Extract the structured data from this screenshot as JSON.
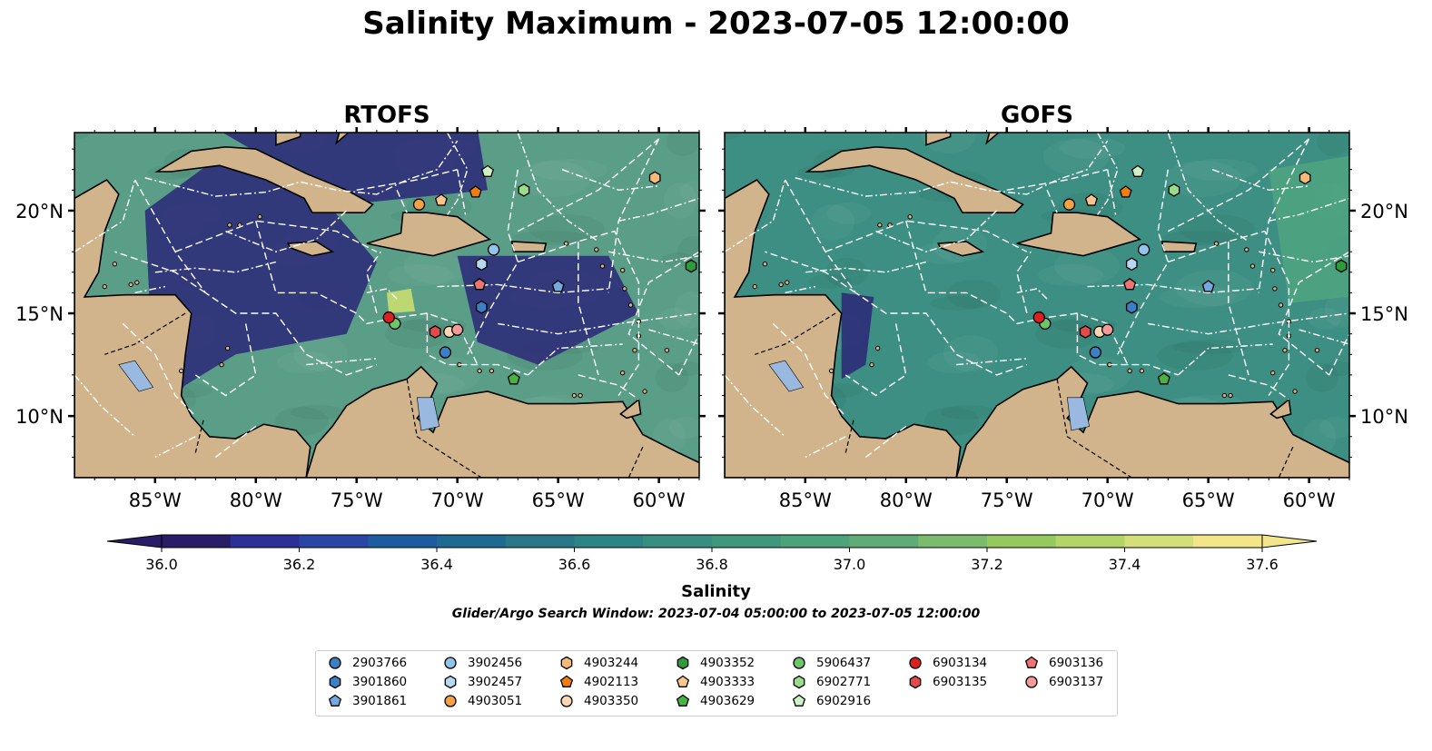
{
  "title": "Salinity Maximum - 2023-07-05 12:00:00",
  "panels": [
    {
      "title": "RTOFS",
      "fill": "#5a9e88",
      "overlays": [
        {
          "color": "#2b2778",
          "points": [
            [
              -85.5,
              20
            ],
            [
              -82,
              22.5
            ],
            [
              -77,
              21
            ],
            [
              -74,
              17.5
            ],
            [
              -75.5,
              14
            ],
            [
              -81,
              13
            ],
            [
              -83.5,
              11.5
            ],
            [
              -85,
              10
            ]
          ]
        },
        {
          "color": "#2b2778",
          "points": [
            [
              -70,
              17.8
            ],
            [
              -62.5,
              17.8
            ],
            [
              -61,
              15
            ],
            [
              -66,
              12.5
            ],
            [
              -69,
              13.6
            ]
          ]
        },
        {
          "color": "#2b2778",
          "points": [
            [
              -82,
              24
            ],
            [
              -69,
              24
            ],
            [
              -68.5,
              21
            ],
            [
              -75.5,
              20.3
            ]
          ]
        },
        {
          "color": "#cfe070",
          "points": [
            [
              -73.5,
              16
            ],
            [
              -72.3,
              16.2
            ],
            [
              -72.1,
              15.1
            ],
            [
              -73.4,
              15
            ]
          ]
        },
        {
          "color": "#2b2778",
          "points": [
            [
              -90,
              13
            ],
            [
              -86,
              11
            ],
            [
              -83,
              8
            ],
            [
              -81,
              7
            ],
            [
              -90,
              7
            ]
          ]
        }
      ]
    },
    {
      "title": "GOFS",
      "fill": "#3d8f83",
      "overlays": [
        {
          "color": "#2b2778",
          "points": [
            [
              -90,
              13
            ],
            [
              -86,
              11
            ],
            [
              -83,
              8
            ],
            [
              -81,
              7
            ],
            [
              -90,
              7
            ]
          ]
        },
        {
          "color": "#2b2778",
          "points": [
            [
              -83.2,
              16
            ],
            [
              -81.6,
              15.8
            ],
            [
              -82,
              12.5
            ],
            [
              -83.2,
              11.8
            ]
          ]
        },
        {
          "color": "#4ea480",
          "points": [
            [
              -62,
              22
            ],
            [
              -56,
              23
            ],
            [
              -56,
              16
            ],
            [
              -61,
              15.5
            ]
          ]
        }
      ]
    }
  ],
  "map": {
    "lon_range": [
      -89,
      -58
    ],
    "lat_range": [
      7,
      23.8
    ],
    "x_ticks": [
      "85°W",
      "80°W",
      "75°W",
      "70°W",
      "65°W",
      "60°W"
    ],
    "y_ticks": [
      "20°N",
      "15°N",
      "10°N"
    ],
    "land_color": "#d2b48c",
    "lake_color": "#9ab9e0"
  },
  "colorbar": {
    "label": "Salinity",
    "ticks": [
      "36.0",
      "36.2",
      "36.4",
      "36.6",
      "36.8",
      "37.0",
      "37.2",
      "37.4",
      "37.6"
    ],
    "min": 36.0,
    "max": 37.6,
    "colors": [
      "#2a1d67",
      "#2b2f96",
      "#2a45a3",
      "#1f5ba0",
      "#1f6a93",
      "#297789",
      "#2d8486",
      "#368f81",
      "#41977b",
      "#4ea27a",
      "#60ac76",
      "#7abb6d",
      "#96c860",
      "#b5d467",
      "#d4de7a",
      "#f2e58a"
    ]
  },
  "search_window": "Glider/Argo Search Window: 2023-07-04 05:00:00 to 2023-07-05 12:00:00",
  "floats": [
    {
      "id": "2903766",
      "color": "#3d7fc4",
      "marker": "circle",
      "lon": -70.6,
      "lat": 13.1
    },
    {
      "id": "3901860",
      "color": "#3d7fc4",
      "marker": "hexagon",
      "lon": -68.8,
      "lat": 15.3
    },
    {
      "id": "3901861",
      "color": "#73a8e0",
      "marker": "pentagon",
      "lon": -65,
      "lat": 16.3
    },
    {
      "id": "3902456",
      "color": "#93c5ec",
      "marker": "circle",
      "lon": -68.2,
      "lat": 18.1
    },
    {
      "id": "3902457",
      "color": "#b6d9f3",
      "marker": "hexagon",
      "lon": -68.8,
      "lat": 17.4
    },
    {
      "id": "4903051",
      "color": "#f4a043",
      "marker": "circle",
      "lon": -71.9,
      "lat": 20.3
    },
    {
      "id": "4903244",
      "color": "#f7b977",
      "marker": "hexagon",
      "lon": -60.2,
      "lat": 21.6
    },
    {
      "id": "4902113",
      "color": "#ef7d10",
      "marker": "pentagon",
      "lon": -69.1,
      "lat": 20.9
    },
    {
      "id": "4903350",
      "color": "#fbd6b3",
      "marker": "circle",
      "lon": -70.4,
      "lat": 14.1
    },
    {
      "id": "4903352",
      "color": "#2f9a3a",
      "marker": "hexagon",
      "lon": -58.4,
      "lat": 17.3
    },
    {
      "id": "4903333",
      "color": "#fbc58f",
      "marker": "pentagon",
      "lon": -70.8,
      "lat": 20.5
    },
    {
      "id": "4903629",
      "color": "#48b243",
      "marker": "pentagon",
      "lon": -67.2,
      "lat": 11.8
    },
    {
      "id": "5906437",
      "color": "#6dc56c",
      "marker": "circle",
      "lon": -73.1,
      "lat": 14.5
    },
    {
      "id": "6902771",
      "color": "#98dc8c",
      "marker": "hexagon",
      "lon": -66.7,
      "lat": 21
    },
    {
      "id": "6902916",
      "color": "#cff2c4",
      "marker": "pentagon",
      "lon": -68.5,
      "lat": 21.9
    },
    {
      "id": "6903134",
      "color": "#dc2020",
      "marker": "circle",
      "lon": -73.4,
      "lat": 14.8
    },
    {
      "id": "6903135",
      "color": "#e14b4b",
      "marker": "hexagon",
      "lon": -71.1,
      "lat": 14.1
    },
    {
      "id": "6903136",
      "color": "#f07373",
      "marker": "pentagon",
      "lon": -68.9,
      "lat": 16.4
    },
    {
      "id": "6903137",
      "color": "#f49a9a",
      "marker": "circle",
      "lon": -70,
      "lat": 14.2
    }
  ]
}
